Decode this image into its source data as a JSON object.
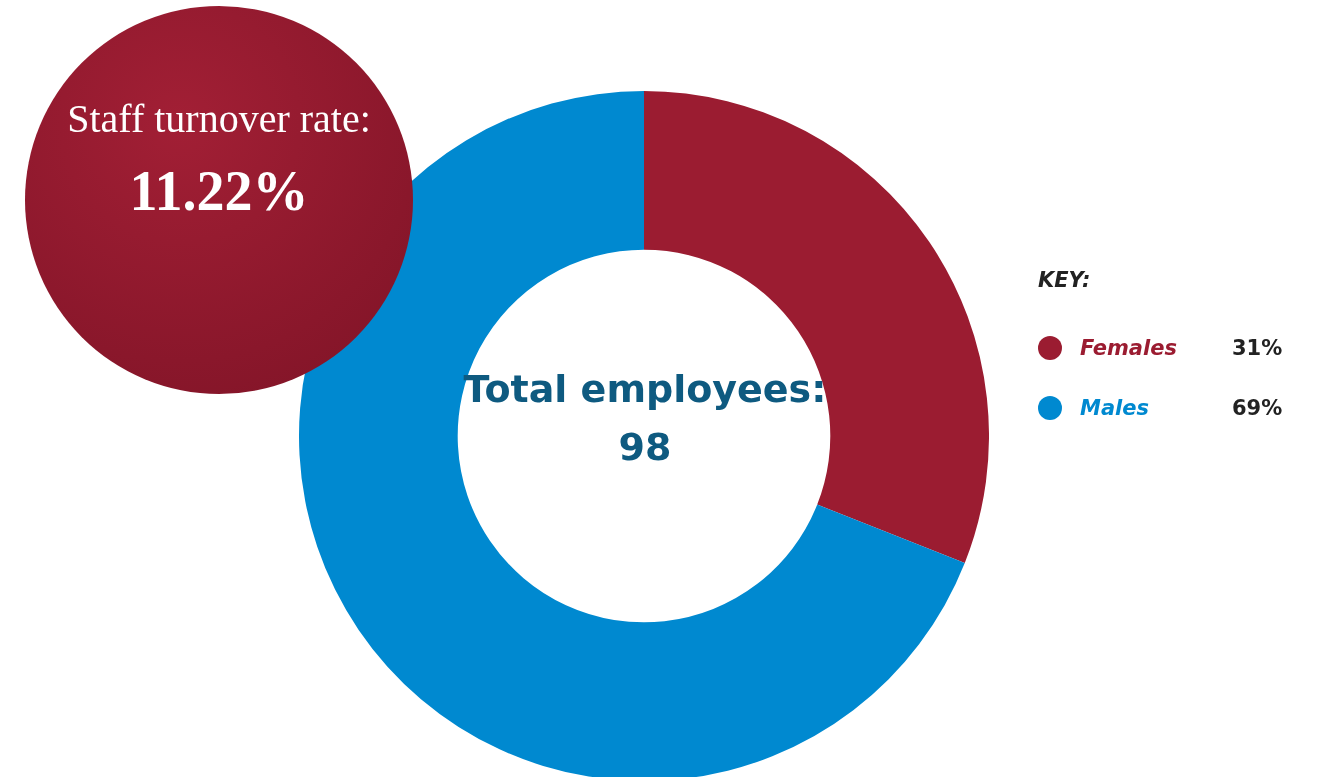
{
  "chart_data": {
    "type": "donut",
    "categories": [
      "Females",
      "Males"
    ],
    "values": [
      31,
      69
    ],
    "value_labels": [
      "31%",
      "69%"
    ],
    "colors": [
      "#9b1c31",
      "#0089d0"
    ],
    "legend_title": "KEY:",
    "legend": "right",
    "annotations": [
      "Staff turnover rate:",
      "11.22%",
      "Total employees:",
      "98"
    ]
  }
}
